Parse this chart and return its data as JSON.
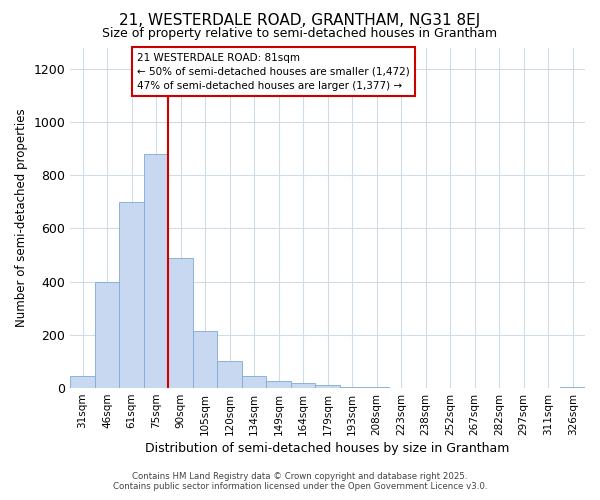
{
  "title1": "21, WESTERDALE ROAD, GRANTHAM, NG31 8EJ",
  "title2": "Size of property relative to semi-detached houses in Grantham",
  "xlabel": "Distribution of semi-detached houses by size in Grantham",
  "ylabel": "Number of semi-detached properties",
  "categories": [
    "31sqm",
    "46sqm",
    "61sqm",
    "75sqm",
    "90sqm",
    "105sqm",
    "120sqm",
    "134sqm",
    "149sqm",
    "164sqm",
    "179sqm",
    "193sqm",
    "208sqm",
    "223sqm",
    "238sqm",
    "252sqm",
    "267sqm",
    "282sqm",
    "297sqm",
    "311sqm",
    "326sqm"
  ],
  "values": [
    45,
    400,
    700,
    880,
    490,
    215,
    100,
    45,
    25,
    20,
    10,
    5,
    3,
    2,
    2,
    1,
    1,
    1,
    1,
    1,
    5
  ],
  "bar_color": "#c8d8f0",
  "bar_edge_color": "#7eabd4",
  "vline_x": 3.5,
  "vline_color": "#cc0000",
  "annotation_title": "21 WESTERDALE ROAD: 81sqm",
  "annotation_line2": "← 50% of semi-detached houses are smaller (1,472)",
  "annotation_line3": "47% of semi-detached houses are larger (1,377) →",
  "annotation_box_color": "#cc0000",
  "ylim": [
    0,
    1280
  ],
  "yticks": [
    0,
    200,
    400,
    600,
    800,
    1000,
    1200
  ],
  "footer_line1": "Contains HM Land Registry data © Crown copyright and database right 2025.",
  "footer_line2": "Contains public sector information licensed under the Open Government Licence v3.0.",
  "bg_color": "#ffffff",
  "plot_bg_color": "#ffffff",
  "grid_color": "#d0dce8",
  "title1_fontsize": 11,
  "title2_fontsize": 9
}
